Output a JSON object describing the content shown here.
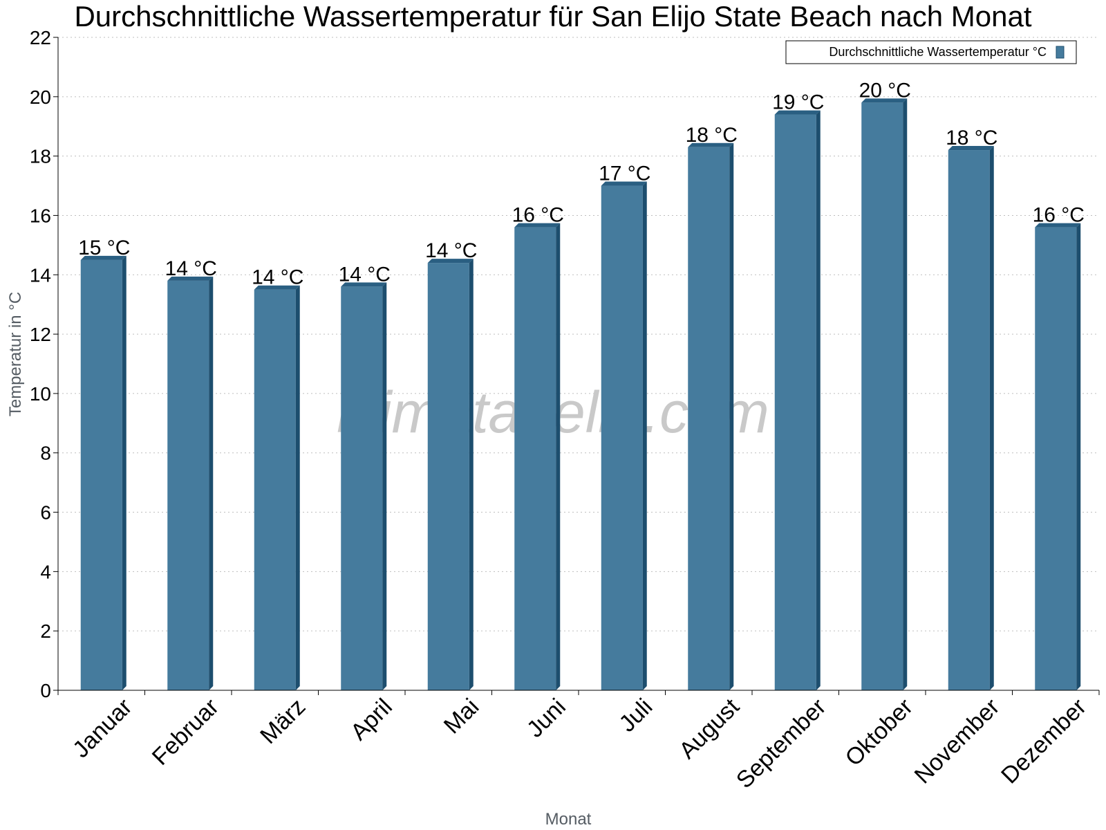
{
  "title": "Durchschnittliche Wassertemperatur für San Elijo State Beach nach Monat",
  "watermark": "klimatabelle.com",
  "colors": {
    "bar": "#457b9d",
    "bar_side": "#1d4e6e",
    "bar_top": "#2a5f82"
  },
  "chart_data": {
    "type": "bar",
    "title": "Durchschnittliche Wassertemperatur für San Elijo State Beach nach Monat",
    "xlabel": "Monat",
    "ylabel": "Temperatur in °C",
    "ylim": [
      0,
      22
    ],
    "yticks": [
      0,
      2,
      4,
      6,
      8,
      10,
      12,
      14,
      16,
      18,
      20,
      22
    ],
    "grid": true,
    "legend": "top-right",
    "categories": [
      "Januar",
      "Februar",
      "März",
      "April",
      "Mai",
      "Juni",
      "Juli",
      "August",
      "September",
      "Oktober",
      "November",
      "Dezember"
    ],
    "series": [
      {
        "name": "Durchschnittliche Wassertemperatur °C",
        "values": [
          14.5,
          13.8,
          13.5,
          13.6,
          14.4,
          15.6,
          17.0,
          18.3,
          19.4,
          19.8,
          18.2,
          15.6
        ],
        "labels": [
          "15 °C",
          "14 °C",
          "14 °C",
          "14 °C",
          "14 °C",
          "16 °C",
          "17 °C",
          "18 °C",
          "19 °C",
          "20 °C",
          "18 °C",
          "16 °C"
        ]
      }
    ]
  }
}
